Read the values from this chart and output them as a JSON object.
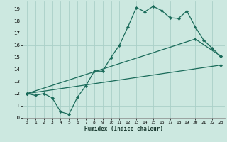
{
  "xlabel": "Humidex (Indice chaleur)",
  "bg_color": "#cce8e0",
  "grid_color": "#aad0c8",
  "line_color": "#1a6b5a",
  "ylim": [
    10,
    19.6
  ],
  "xlim": [
    -0.5,
    23.5
  ],
  "yticks": [
    10,
    11,
    12,
    13,
    14,
    15,
    16,
    17,
    18,
    19
  ],
  "xticks": [
    0,
    1,
    2,
    3,
    4,
    5,
    6,
    7,
    8,
    9,
    10,
    11,
    12,
    13,
    14,
    15,
    16,
    17,
    18,
    19,
    20,
    21,
    22,
    23
  ],
  "line1_x": [
    0,
    1,
    2,
    3,
    4,
    5,
    6,
    7,
    8,
    9,
    10,
    11,
    12,
    13,
    14,
    15,
    16,
    17,
    18,
    19,
    20,
    21,
    22,
    23
  ],
  "line1_y": [
    12.0,
    11.85,
    12.0,
    11.65,
    10.5,
    10.3,
    11.7,
    12.65,
    13.85,
    13.85,
    15.0,
    16.0,
    17.5,
    19.1,
    18.75,
    19.2,
    18.85,
    18.25,
    18.2,
    18.8,
    17.5,
    16.4,
    15.75,
    15.1
  ],
  "line2_x": [
    0,
    20,
    23
  ],
  "line2_y": [
    12.0,
    16.5,
    15.1
  ],
  "line3_x": [
    0,
    23
  ],
  "line3_y": [
    12.0,
    14.35
  ]
}
